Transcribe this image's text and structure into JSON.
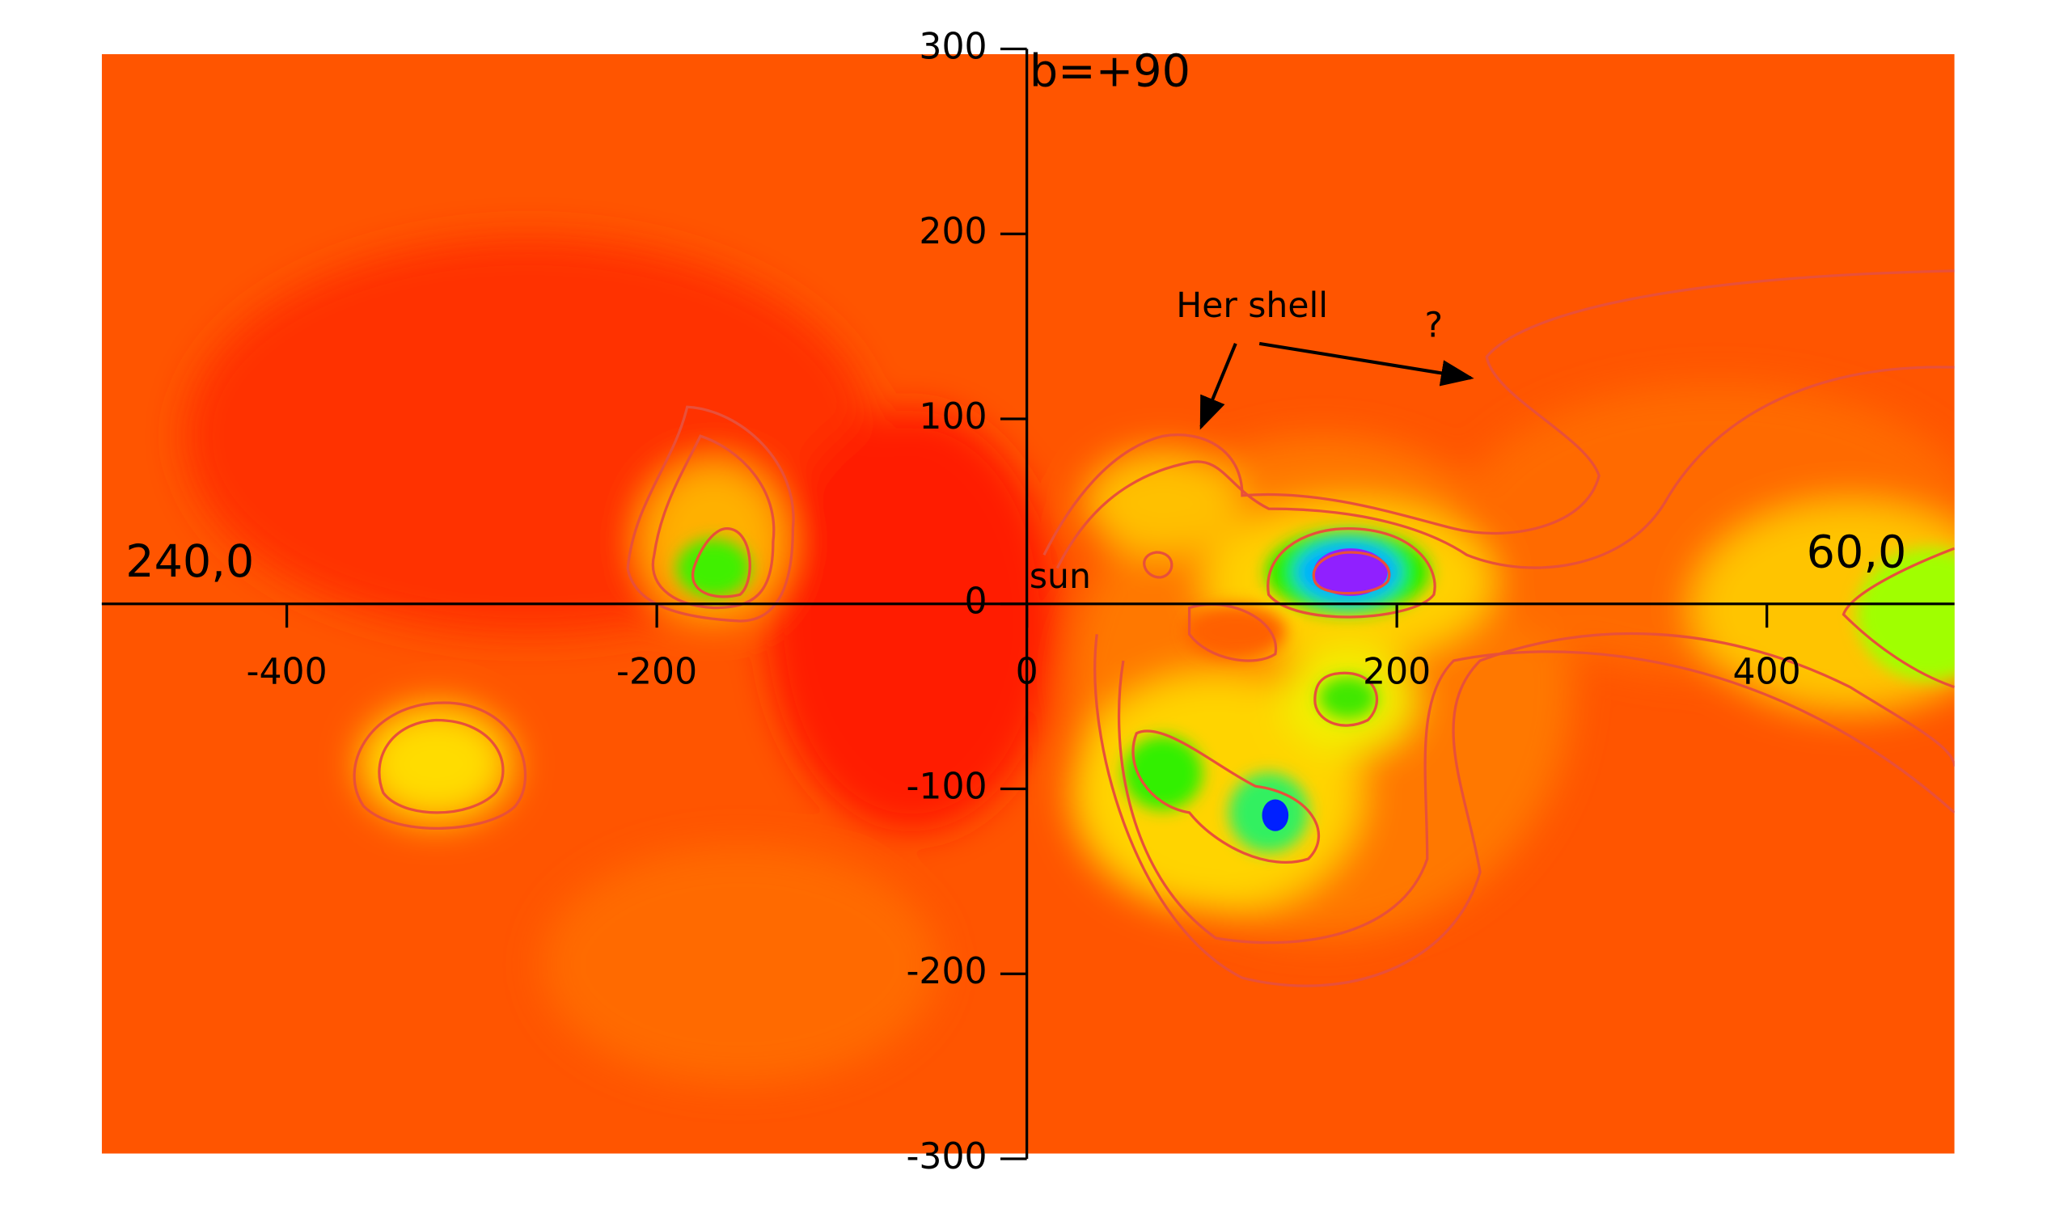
{
  "chart_data": {
    "type": "heatmap",
    "annotations": {
      "pole": "b=+90",
      "left": "240,0",
      "right": "60,0",
      "origin": "sun",
      "shell": "Her shell",
      "question": "?"
    },
    "xlim": [
      -500,
      500
    ],
    "ylim": [
      -300,
      300
    ],
    "xticks": [
      -400,
      -200,
      0,
      200,
      400
    ],
    "yticks": [
      -300,
      -200,
      -100,
      0,
      100,
      200,
      300
    ]
  }
}
